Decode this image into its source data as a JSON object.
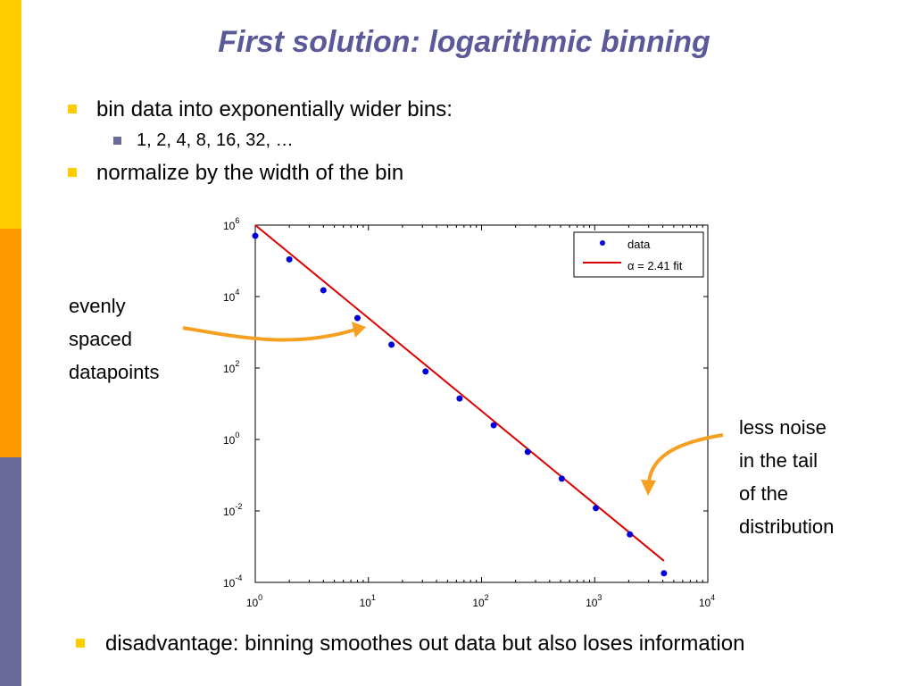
{
  "slide": {
    "title": "First solution: logarithmic binning",
    "bullets": [
      {
        "text": "bin data into exponentially wider bins:",
        "level": 1
      },
      {
        "text": "1, 2, 4,  8, 16, 32, …",
        "level": 2
      },
      {
        "text": "normalize by the width of the bin",
        "level": 1
      }
    ],
    "bottom_bullet": "disadvantage: binning smoothes out data but also loses information",
    "left_note": [
      "evenly",
      "spaced",
      "datapoints"
    ],
    "right_note": [
      "less noise",
      "in the tail",
      "of the",
      "distribution"
    ],
    "colors": {
      "title": "#5a5a9a",
      "bullet_level1": "#ffcc00",
      "bullet_level2": "#6b6b9b",
      "arrow": "#f5a020",
      "sidebar": [
        "#ffcc00",
        "#ff9900",
        "#6b6b9b"
      ]
    }
  },
  "chart_data": {
    "type": "scatter",
    "x_scale": "log",
    "y_scale": "log",
    "xlim": [
      1,
      10000
    ],
    "ylim": [
      0.0001,
      1000000
    ],
    "x_ticks": [
      {
        "base": "10",
        "exp": "0",
        "value": 1
      },
      {
        "base": "10",
        "exp": "1",
        "value": 10
      },
      {
        "base": "10",
        "exp": "2",
        "value": 100
      },
      {
        "base": "10",
        "exp": "3",
        "value": 1000
      },
      {
        "base": "10",
        "exp": "4",
        "value": 10000
      }
    ],
    "y_ticks": [
      {
        "base": "10",
        "exp": "6",
        "value": 1000000
      },
      {
        "base": "10",
        "exp": "4",
        "value": 10000
      },
      {
        "base": "10",
        "exp": "2",
        "value": 100
      },
      {
        "base": "10",
        "exp": "0",
        "value": 1
      },
      {
        "base": "10",
        "exp": "-2",
        "value": 0.01
      },
      {
        "base": "10",
        "exp": "-4",
        "value": 0.0001
      }
    ],
    "series": [
      {
        "name": "data",
        "kind": "points",
        "color": "#0000dd",
        "x": [
          1,
          2,
          4,
          8,
          16,
          32,
          64,
          128,
          256,
          512,
          1024,
          2048,
          4096
        ],
        "y": [
          500000,
          110000,
          15000,
          2500,
          450,
          80,
          14,
          2.5,
          0.45,
          0.08,
          0.012,
          0.0022,
          0.00018
        ]
      },
      {
        "name": "α = 2.41 fit",
        "kind": "line",
        "color": "#dd0000",
        "x": [
          1,
          4096
        ],
        "y": [
          1000000,
          0.0004
        ]
      }
    ],
    "legend": {
      "position": "top-right",
      "entries": [
        {
          "symbol": "α",
          "text": " = 2.41 fit"
        }
      ]
    }
  }
}
